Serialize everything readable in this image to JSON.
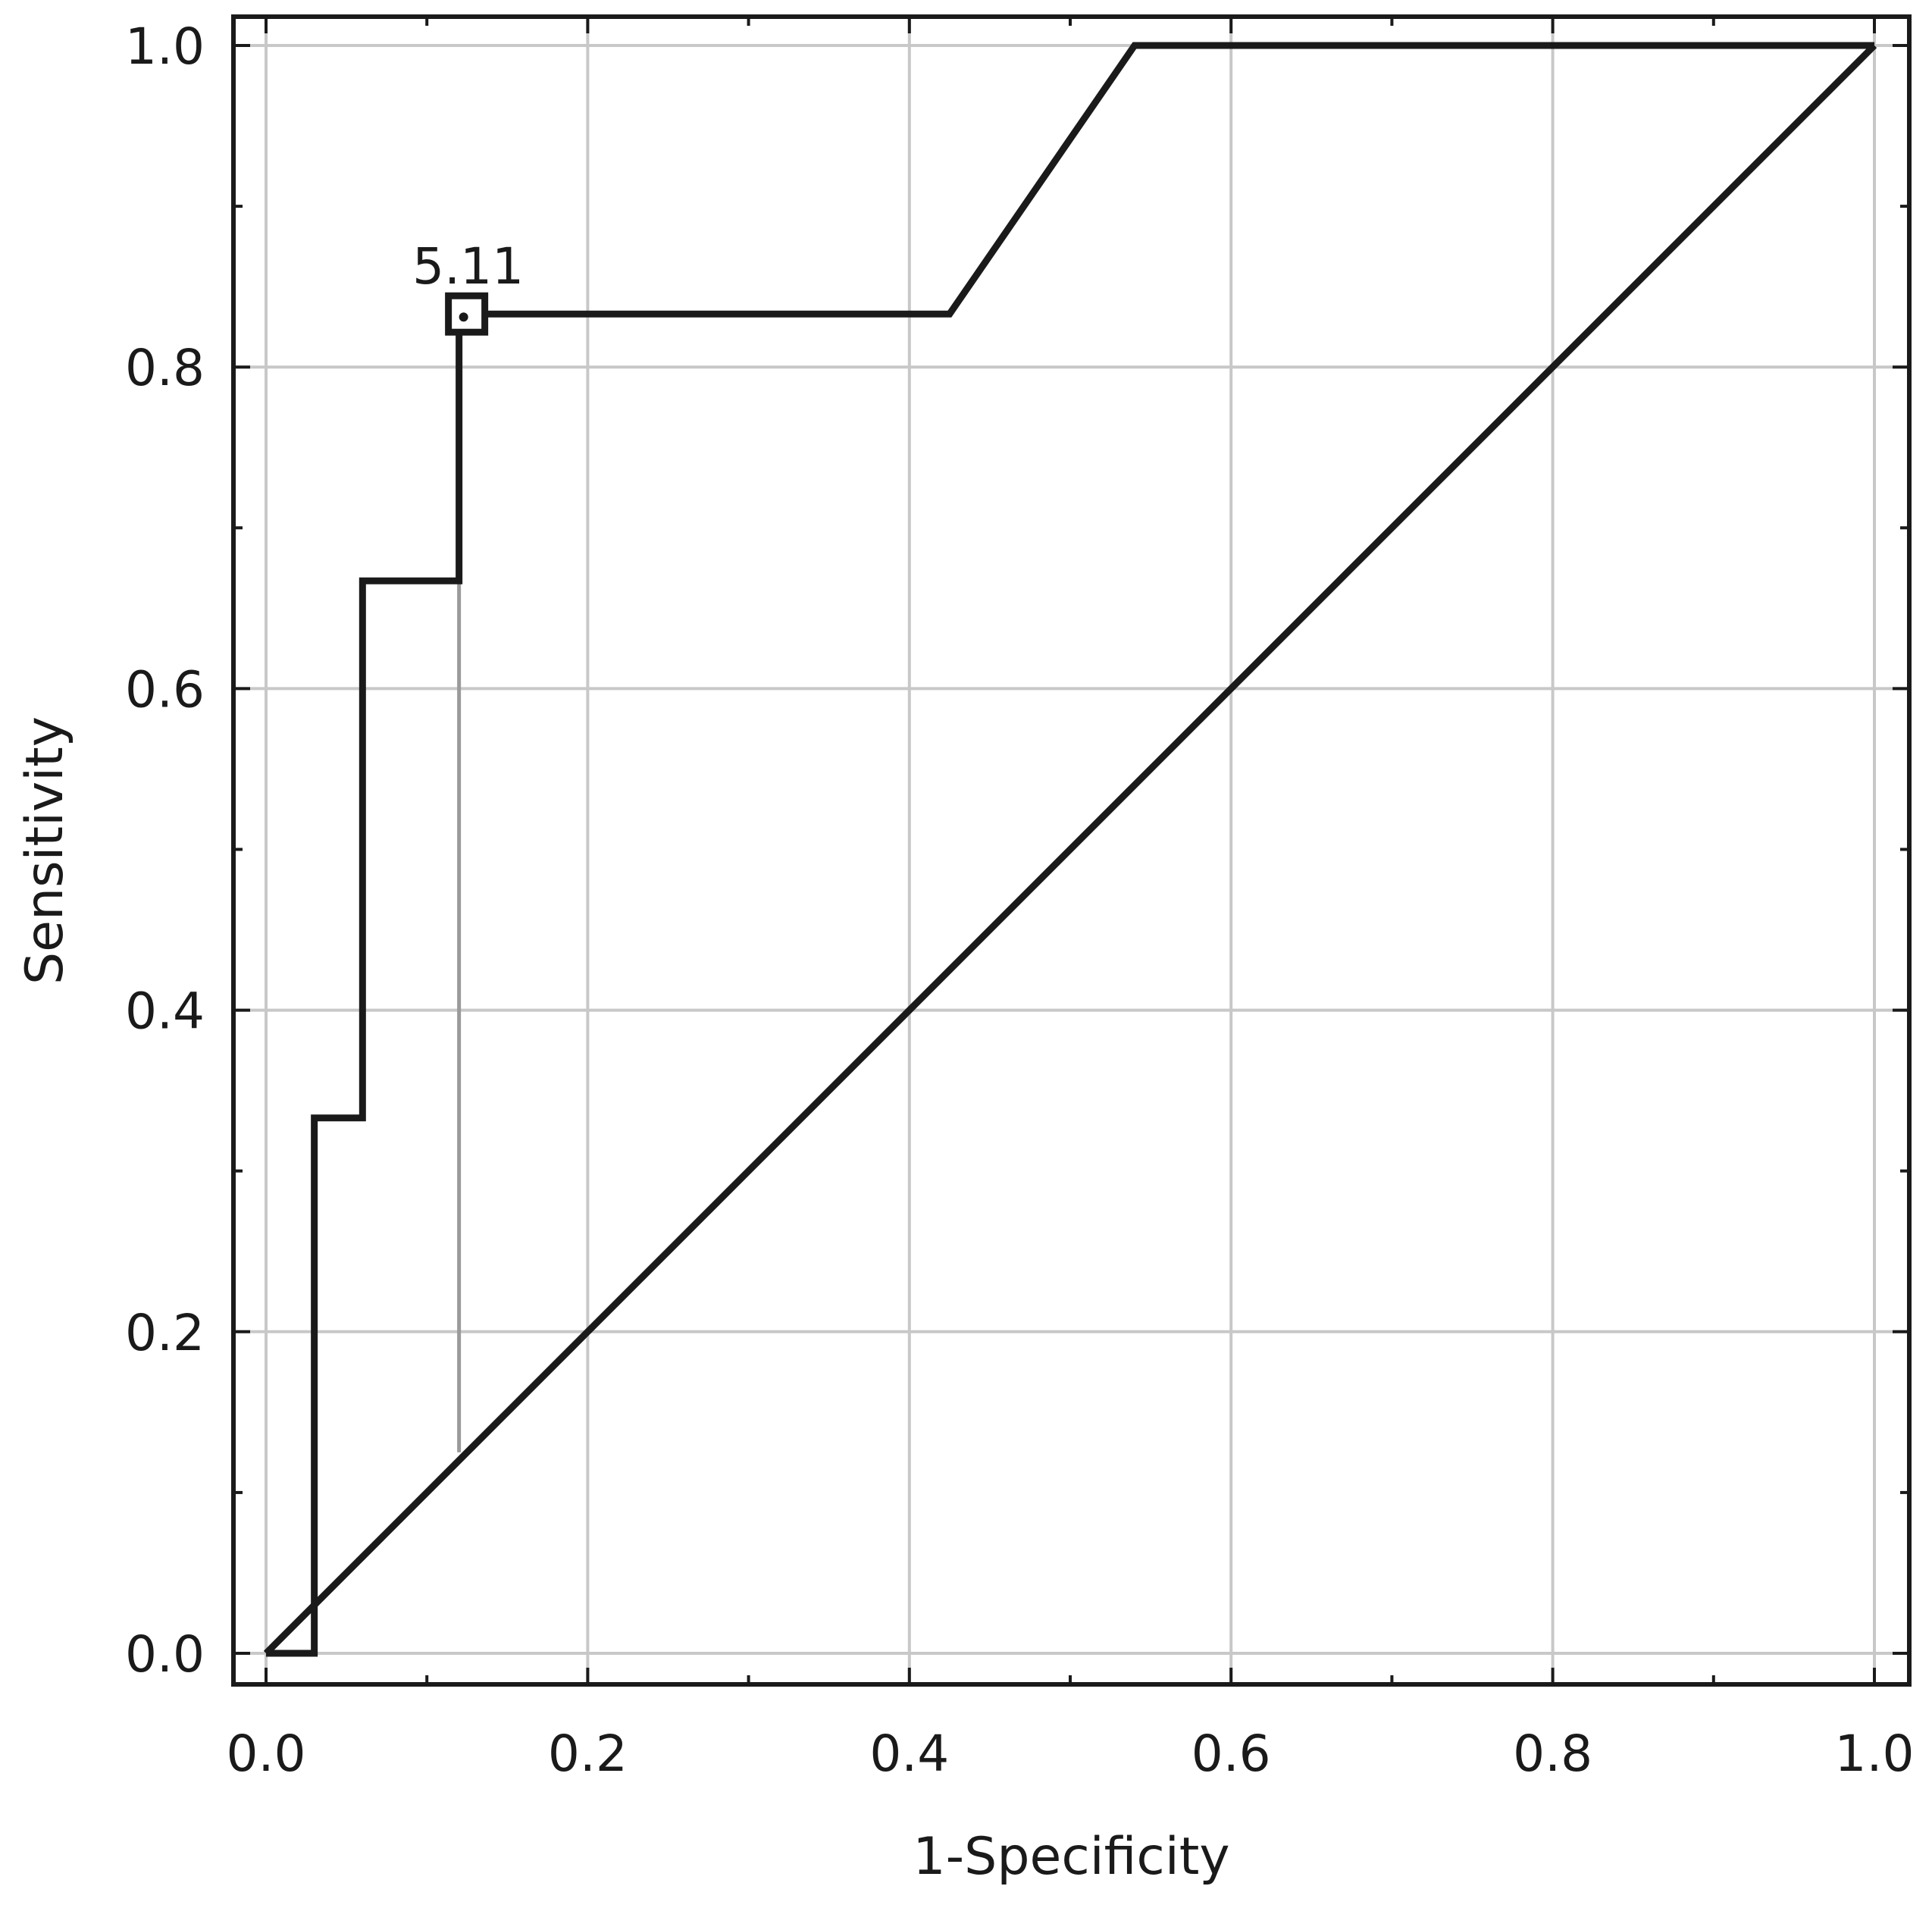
{
  "chart_data": {
    "type": "line",
    "title": "",
    "xlabel": "1-Specificity",
    "ylabel": "Sensitivity",
    "xlim": [
      0.0,
      1.0
    ],
    "ylim": [
      0.0,
      1.0
    ],
    "x_ticks": [
      "0.0",
      "0.2",
      "0.4",
      "0.6",
      "0.8",
      "1.0"
    ],
    "y_ticks": [
      "0.0",
      "0.2",
      "0.4",
      "0.6",
      "0.8",
      "1.0"
    ],
    "grid": true,
    "legend": "none",
    "series": [
      {
        "x": [
          0.0,
          0.03,
          0.03,
          0.06,
          0.06,
          0.12,
          0.12,
          0.425,
          0.54,
          1.0
        ],
        "y": [
          0.0,
          0.0,
          0.333,
          0.333,
          0.667,
          0.667,
          0.833,
          0.833,
          1.0,
          1.0
        ]
      },
      {
        "x": [
          0.0,
          1.0
        ],
        "y": [
          0.0,
          1.0
        ]
      }
    ],
    "cutoff_marker": {
      "x": 0.12,
      "y": 0.833,
      "label": "5.11"
    },
    "cutoff_guide": {
      "x": 0.12,
      "y_from": 0.125,
      "y_to": 0.833
    },
    "colors": {
      "curve": "#1a1a1a",
      "grid": "#c8c8c8",
      "guide": "#9a9a9a"
    }
  }
}
